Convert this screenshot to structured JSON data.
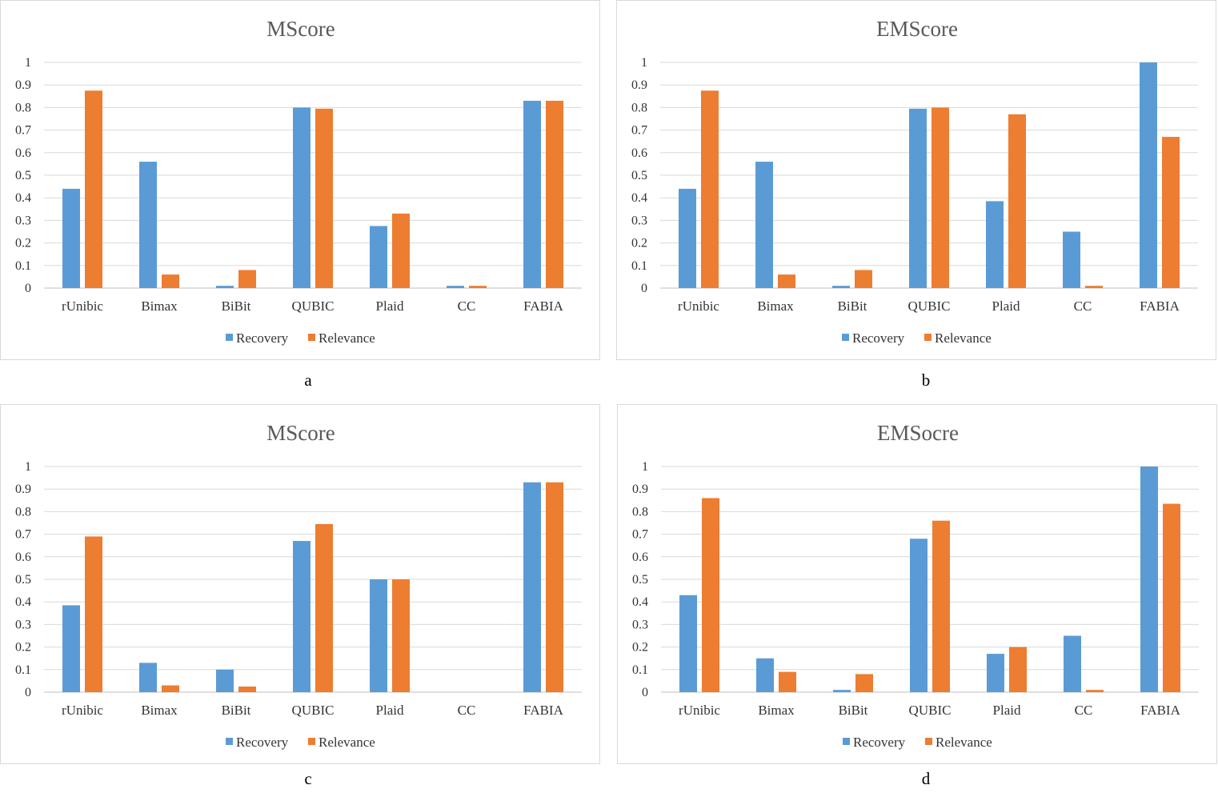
{
  "colors": {
    "recovery": "#5b9bd5",
    "relevance": "#ed7d31",
    "grid": "#d9d9d9",
    "axis": "#bfbfbf"
  },
  "chart_data": [
    {
      "type": "bar",
      "title": "MScore",
      "caption": "a",
      "categories": [
        "rUnibic",
        "Bimax",
        "BiBit",
        "QUBIC",
        "Plaid",
        "CC",
        "FABIA"
      ],
      "series": [
        {
          "name": "Recovery",
          "values": [
            0.44,
            0.56,
            0.01,
            0.8,
            0.275,
            0.01,
            0.83
          ]
        },
        {
          "name": "Relevance",
          "values": [
            0.875,
            0.06,
            0.08,
            0.795,
            0.33,
            0.01,
            0.83
          ]
        }
      ],
      "yticks": [
        "0",
        "0.1",
        "0.2",
        "0.3",
        "0.4",
        "0.5",
        "0.6",
        "0.7",
        "0.8",
        "0.9",
        "1"
      ],
      "ylim": [
        0,
        1
      ],
      "grid": true,
      "legend": "bottom"
    },
    {
      "type": "bar",
      "title": "EMScore",
      "caption": "b",
      "categories": [
        "rUnibic",
        "Bimax",
        "BiBit",
        "QUBIC",
        "Plaid",
        "CC",
        "FABIA"
      ],
      "series": [
        {
          "name": "Recovery",
          "values": [
            0.44,
            0.56,
            0.01,
            0.795,
            0.385,
            0.25,
            1.0
          ]
        },
        {
          "name": "Relevance",
          "values": [
            0.875,
            0.06,
            0.08,
            0.8,
            0.77,
            0.01,
            0.67
          ]
        }
      ],
      "yticks": [
        "0",
        "0.1",
        "0.2",
        "0.3",
        "0.4",
        "0.5",
        "0.6",
        "0.7",
        "0.8",
        "0.9",
        "1"
      ],
      "ylim": [
        0,
        1
      ],
      "grid": true,
      "legend": "bottom"
    },
    {
      "type": "bar",
      "title": "MScore",
      "caption": "c",
      "categories": [
        "rUnibic",
        "Bimax",
        "BiBit",
        "QUBIC",
        "Plaid",
        "CC",
        "FABIA"
      ],
      "series": [
        {
          "name": "Recovery",
          "values": [
            0.385,
            0.13,
            0.1,
            0.67,
            0.5,
            0.0,
            0.93
          ]
        },
        {
          "name": "Relevance",
          "values": [
            0.69,
            0.03,
            0.025,
            0.745,
            0.5,
            0.0,
            0.93
          ]
        }
      ],
      "yticks": [
        "0",
        "0.1",
        "0.2",
        "0.3",
        "0.4",
        "0.5",
        "0.6",
        "0.7",
        "0.8",
        "0.9",
        "1"
      ],
      "ylim": [
        0,
        1
      ],
      "grid": true,
      "legend": "bottom"
    },
    {
      "type": "bar",
      "title": "EMSocre",
      "caption": "d",
      "categories": [
        "rUnibic",
        "Bimax",
        "BiBit",
        "QUBIC",
        "Plaid",
        "CC",
        "FABIA"
      ],
      "series": [
        {
          "name": "Recovery",
          "values": [
            0.43,
            0.15,
            0.01,
            0.68,
            0.17,
            0.25,
            1.0
          ]
        },
        {
          "name": "Relevance",
          "values": [
            0.86,
            0.09,
            0.08,
            0.76,
            0.2,
            0.01,
            0.835
          ]
        }
      ],
      "yticks": [
        "0",
        "0.1",
        "0.2",
        "0.3",
        "0.4",
        "0.5",
        "0.6",
        "0.7",
        "0.8",
        "0.9",
        "1"
      ],
      "ylim": [
        0,
        1
      ],
      "grid": true,
      "legend": "bottom"
    }
  ]
}
